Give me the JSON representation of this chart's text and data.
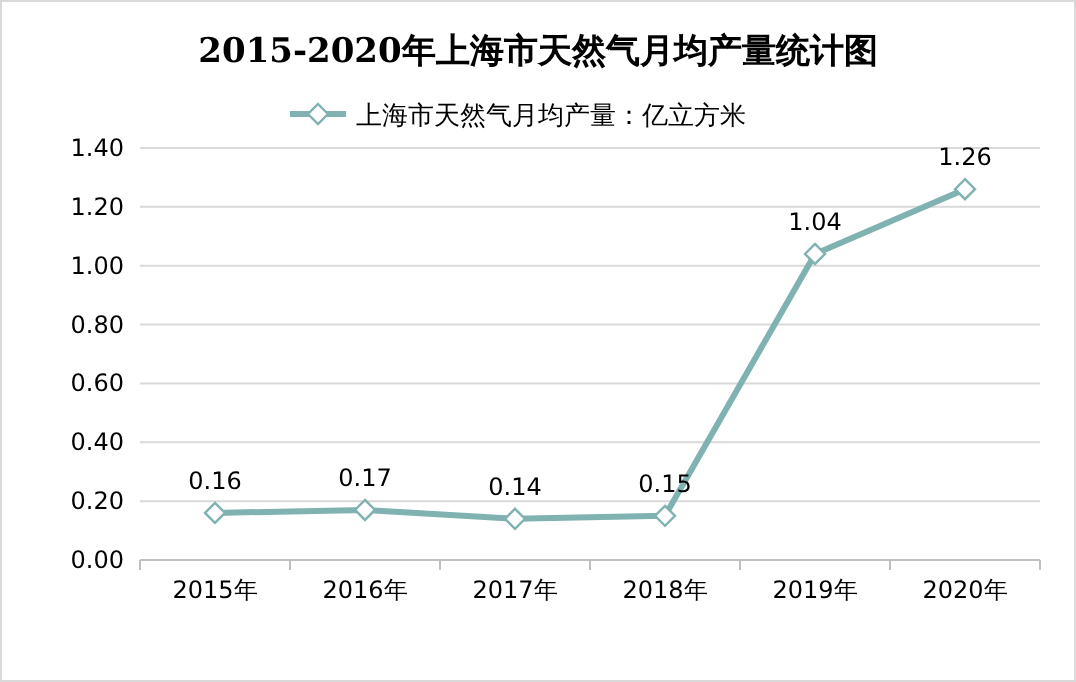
{
  "chart_data": {
    "type": "line",
    "title": "2015-2020年上海市天然气月均产量统计图",
    "categories": [
      "2015年",
      "2016年",
      "2017年",
      "2018年",
      "2019年",
      "2020年"
    ],
    "series": [
      {
        "name": "上海市天然气月均产量：亿立方米",
        "color": "#7fb2b0",
        "values": [
          0.16,
          0.17,
          0.14,
          0.15,
          1.04,
          1.26
        ]
      }
    ],
    "ylim": [
      0,
      1.4
    ],
    "yticks": [
      "0.00",
      "0.20",
      "0.40",
      "0.60",
      "0.80",
      "1.00",
      "1.20",
      "1.40"
    ],
    "grid": "y",
    "legend": "top",
    "marker": "diamond",
    "line_style": "solid",
    "data_labels": true
  }
}
